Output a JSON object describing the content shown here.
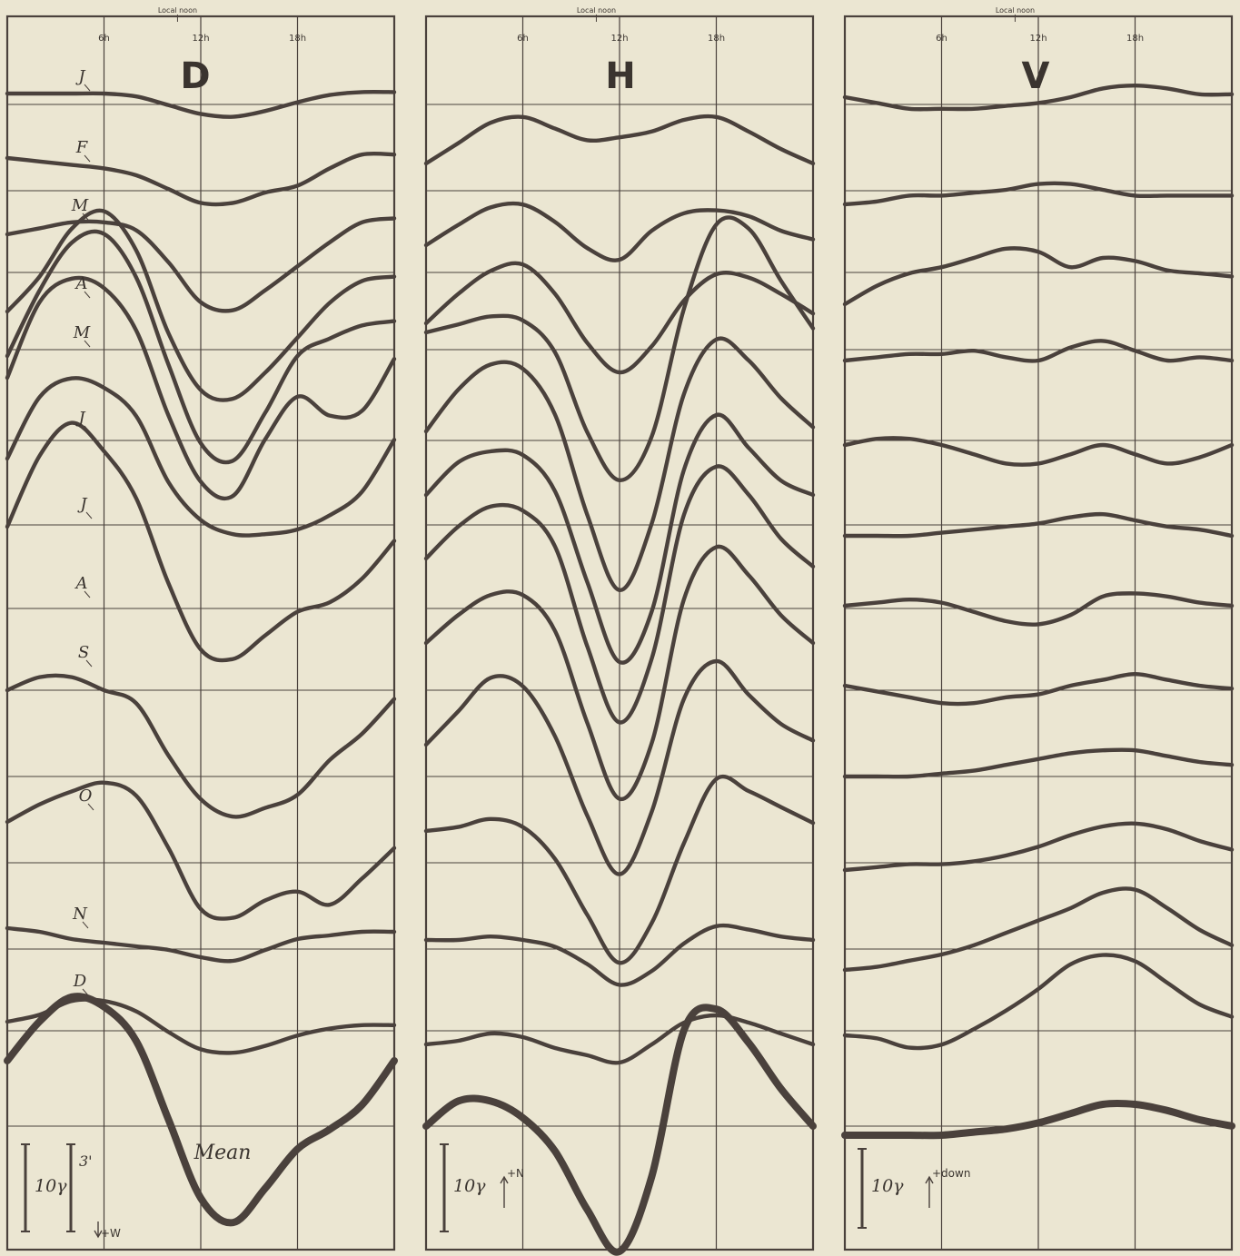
{
  "chart_data": [
    {
      "type": "line",
      "title": "D",
      "top_label": "Local noon",
      "x": [
        0,
        2,
        4,
        6,
        8,
        10,
        12,
        14,
        16,
        18,
        20,
        22,
        24
      ],
      "xtick_labels": [
        "6h",
        "12h",
        "18h"
      ],
      "row_labels": [
        "J",
        "F",
        "M",
        "A",
        "M",
        "J",
        "J",
        "A",
        "S",
        "O",
        "N",
        "D"
      ],
      "series": [
        {
          "name": "J",
          "values": [
            0,
            0,
            0,
            0,
            -0.1,
            -0.4,
            -0.7,
            -0.8,
            -0.6,
            -0.3,
            -0.05,
            0.05,
            0.05
          ]
        },
        {
          "name": "F",
          "values": [
            0,
            -0.1,
            -0.2,
            -0.3,
            -0.5,
            -0.9,
            -1.3,
            -1.3,
            -1.0,
            -0.8,
            -0.3,
            0.1,
            0.1
          ]
        },
        {
          "name": "M",
          "values": [
            0,
            0.15,
            0.3,
            0.3,
            0.1,
            -0.7,
            -1.7,
            -1.9,
            -1.4,
            -0.8,
            -0.2,
            0.3,
            0.4
          ]
        },
        {
          "name": "A",
          "values": [
            0,
            0.8,
            1.9,
            2.3,
            1.4,
            -0.5,
            -1.8,
            -2.0,
            -1.4,
            -0.6,
            0.2,
            0.7,
            0.8
          ]
        },
        {
          "name": "M",
          "values": [
            0,
            1.5,
            2.6,
            2.8,
            1.8,
            -0.2,
            -2.0,
            -2.4,
            -1.3,
            0.0,
            0.4,
            0.7,
            0.8
          ]
        },
        {
          "name": "J",
          "values": [
            0,
            1.6,
            2.1,
            1.9,
            1.0,
            -0.8,
            -2.2,
            -2.5,
            -1.3,
            -0.4,
            -0.8,
            -0.7,
            0.4
          ]
        },
        {
          "name": "J",
          "values": [
            0,
            1.3,
            1.7,
            1.5,
            0.9,
            -0.5,
            -1.3,
            -1.6,
            -1.6,
            -1.5,
            -1.2,
            -0.7,
            0.4
          ]
        },
        {
          "name": "A",
          "values": [
            0,
            1.5,
            2.2,
            1.6,
            0.6,
            -1.2,
            -2.6,
            -2.8,
            -2.3,
            -1.8,
            -1.6,
            -1.1,
            -0.3
          ]
        },
        {
          "name": "S",
          "values": [
            0,
            0.3,
            0.3,
            0.0,
            -0.3,
            -1.5,
            -2.5,
            -2.9,
            -2.7,
            -2.4,
            -1.6,
            -1.0,
            -0.2
          ]
        },
        {
          "name": "O",
          "values": [
            0,
            0.4,
            0.7,
            0.9,
            0.6,
            -0.6,
            -2.0,
            -2.2,
            -1.8,
            -1.6,
            -1.9,
            -1.3,
            -0.6
          ]
        },
        {
          "name": "N",
          "values": [
            0,
            -0.1,
            -0.3,
            -0.4,
            -0.5,
            -0.6,
            -0.8,
            -0.9,
            -0.6,
            -0.3,
            -0.2,
            -0.1,
            -0.1
          ]
        },
        {
          "name": "D",
          "values": [
            0,
            0.2,
            0.6,
            0.6,
            0.3,
            -0.3,
            -0.8,
            -0.9,
            -0.7,
            -0.4,
            -0.2,
            -0.1,
            -0.1
          ]
        },
        {
          "name": "Mean",
          "values": [
            0,
            0.8,
            1.3,
            1.1,
            0.4,
            -1.2,
            -2.8,
            -3.3,
            -2.6,
            -1.8,
            -1.4,
            -0.9,
            0.0
          ]
        }
      ],
      "scale_bar": {
        "label_main": "10γ",
        "label_alt": "3'",
        "direction_label": "+W"
      }
    },
    {
      "type": "line",
      "title": "H",
      "top_label": "Local noon",
      "x": [
        0,
        2,
        4,
        6,
        8,
        10,
        12,
        14,
        16,
        18,
        20,
        22,
        24
      ],
      "xtick_labels": [
        "6h",
        "12h",
        "18h"
      ],
      "series": [
        {
          "name": "J",
          "values": [
            0,
            0.7,
            1.4,
            1.6,
            1.2,
            0.8,
            0.9,
            1.1,
            1.5,
            1.6,
            1.1,
            0.5,
            0.0
          ]
        },
        {
          "name": "F",
          "values": [
            0,
            0.7,
            1.3,
            1.4,
            0.8,
            -0.1,
            -0.5,
            0.5,
            1.1,
            1.2,
            1.0,
            0.5,
            0.2
          ]
        },
        {
          "name": "M",
          "values": [
            0,
            0.9,
            1.6,
            1.8,
            0.9,
            -0.6,
            -1.5,
            -0.7,
            0.7,
            1.5,
            1.4,
            0.9,
            0.3
          ]
        },
        {
          "name": "A",
          "values": [
            0,
            0.2,
            0.4,
            0.3,
            -0.5,
            -2.5,
            -3.7,
            -2.6,
            0.6,
            2.7,
            2.6,
            1.3,
            0.1
          ]
        },
        {
          "name": "M",
          "values": [
            0,
            1.0,
            1.6,
            1.5,
            0.4,
            -2.0,
            -3.8,
            -2.2,
            0.9,
            2.2,
            1.7,
            0.8,
            0.1
          ]
        },
        {
          "name": "J",
          "values": [
            0,
            0.9,
            1.2,
            1.1,
            0.1,
            -2.4,
            -4.6,
            -3.2,
            0.7,
            2.2,
            1.3,
            0.4,
            0.0
          ]
        },
        {
          "name": "J",
          "values": [
            0,
            0.8,
            1.3,
            1.2,
            0.3,
            -2.2,
            -4.1,
            -2.5,
            1.1,
            2.3,
            1.6,
            0.5,
            -0.2
          ]
        },
        {
          "name": "A",
          "values": [
            0,
            0.7,
            1.2,
            1.2,
            0.3,
            -2.0,
            -3.9,
            -2.5,
            1.1,
            2.4,
            1.7,
            0.7,
            0.0
          ]
        },
        {
          "name": "S",
          "values": [
            0,
            0.8,
            1.6,
            1.4,
            0.2,
            -1.7,
            -3.1,
            -1.6,
            1.1,
            2.0,
            1.2,
            0.5,
            0.1
          ]
        },
        {
          "name": "O",
          "values": [
            0,
            0.1,
            0.3,
            0.1,
            -0.7,
            -2.1,
            -3.3,
            -2.3,
            -0.3,
            1.3,
            1.0,
            0.6,
            0.2
          ]
        },
        {
          "name": "N",
          "values": [
            0,
            0.0,
            0.1,
            0.0,
            -0.2,
            -0.7,
            -1.3,
            -0.9,
            -0.1,
            0.4,
            0.3,
            0.1,
            0.0
          ]
        },
        {
          "name": "D",
          "values": [
            0,
            0.1,
            0.3,
            0.2,
            -0.1,
            -0.3,
            -0.5,
            0.0,
            0.6,
            0.8,
            0.6,
            0.3,
            0.0
          ]
        },
        {
          "name": "Mean",
          "values": [
            0,
            0.6,
            0.6,
            0.2,
            -0.6,
            -2.0,
            -3.0,
            -1.2,
            2.3,
            2.8,
            2.0,
            0.9,
            0.0
          ]
        }
      ],
      "scale_bar": {
        "label_main": "10γ",
        "direction_label": "+N"
      }
    },
    {
      "type": "line",
      "title": "V",
      "top_label": "Local noon",
      "x": [
        0,
        2,
        4,
        6,
        8,
        10,
        12,
        14,
        16,
        18,
        20,
        22,
        24
      ],
      "xtick_labels": [
        "6h",
        "12h",
        "18h"
      ],
      "series": [
        {
          "name": "J",
          "values": [
            0,
            -0.2,
            -0.4,
            -0.4,
            -0.4,
            -0.3,
            -0.2,
            0.0,
            0.3,
            0.4,
            0.3,
            0.1,
            0.1
          ]
        },
        {
          "name": "F",
          "values": [
            0,
            0.1,
            0.3,
            0.3,
            0.4,
            0.5,
            0.7,
            0.7,
            0.5,
            0.3,
            0.3,
            0.3,
            0.3
          ]
        },
        {
          "name": "M",
          "values": [
            0,
            0.6,
            1.0,
            1.2,
            1.5,
            1.8,
            1.7,
            1.2,
            1.5,
            1.4,
            1.1,
            1.0,
            0.9
          ]
        },
        {
          "name": "A",
          "values": [
            0,
            0.1,
            0.2,
            0.2,
            0.3,
            0.1,
            0.0,
            0.4,
            0.6,
            0.3,
            0.0,
            0.1,
            0.0
          ]
        },
        {
          "name": "M",
          "values": [
            0,
            0.2,
            0.2,
            0.0,
            -0.3,
            -0.6,
            -0.6,
            -0.3,
            0.0,
            -0.3,
            -0.6,
            -0.4,
            0.0
          ]
        },
        {
          "name": "J",
          "values": [
            0,
            0.0,
            0.0,
            0.1,
            0.2,
            0.3,
            0.4,
            0.6,
            0.7,
            0.5,
            0.3,
            0.2,
            0.0
          ]
        },
        {
          "name": "J",
          "values": [
            0,
            0.1,
            0.2,
            0.1,
            -0.2,
            -0.5,
            -0.6,
            -0.3,
            0.3,
            0.4,
            0.3,
            0.1,
            0.0
          ]
        },
        {
          "name": "A",
          "values": [
            0,
            -0.2,
            -0.4,
            -0.6,
            -0.6,
            -0.4,
            -0.3,
            0.0,
            0.2,
            0.4,
            0.2,
            0.0,
            -0.1
          ]
        },
        {
          "name": "S",
          "values": [
            0,
            0.0,
            0.0,
            0.1,
            0.2,
            0.4,
            0.6,
            0.8,
            0.9,
            0.9,
            0.7,
            0.5,
            0.4
          ]
        },
        {
          "name": "O",
          "values": [
            0,
            0.1,
            0.2,
            0.2,
            0.3,
            0.5,
            0.8,
            1.2,
            1.5,
            1.6,
            1.4,
            1.0,
            0.7
          ]
        },
        {
          "name": "N",
          "values": [
            0,
            0.1,
            0.3,
            0.5,
            0.8,
            1.2,
            1.6,
            2.0,
            2.5,
            2.6,
            2.0,
            1.3,
            0.8
          ]
        },
        {
          "name": "D",
          "values": [
            0,
            -0.1,
            -0.4,
            -0.3,
            0.2,
            0.8,
            1.5,
            2.3,
            2.6,
            2.4,
            1.7,
            1.0,
            0.6
          ]
        },
        {
          "name": "Mean",
          "values": [
            0,
            0.0,
            0.0,
            0.0,
            0.1,
            0.2,
            0.4,
            0.7,
            1.0,
            1.0,
            0.8,
            0.5,
            0.3
          ]
        }
      ],
      "scale_bar": {
        "label_main": "10γ",
        "direction_label": "+down"
      }
    }
  ]
}
